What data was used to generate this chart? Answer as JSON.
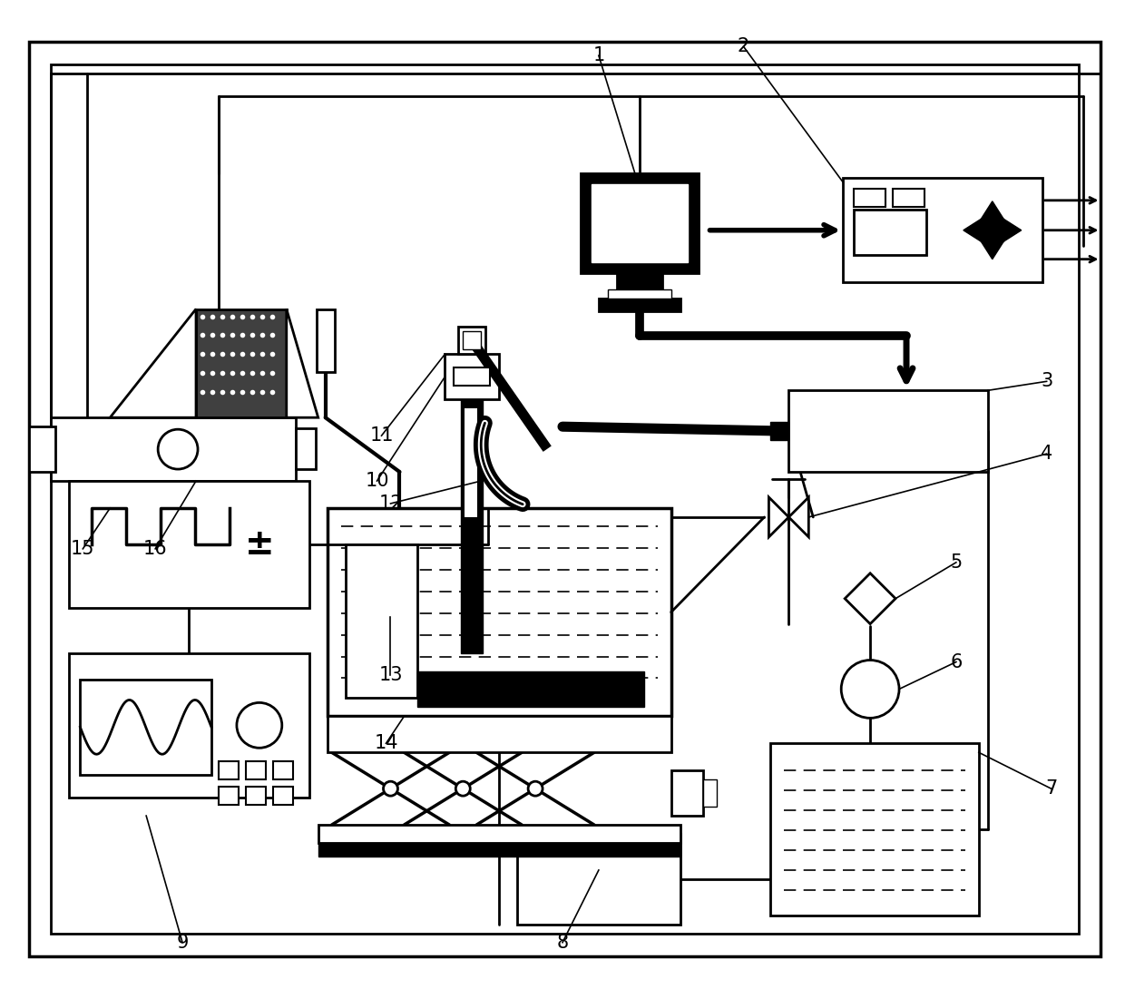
{
  "bg_color": "#ffffff",
  "lw": 2.0,
  "fig_width": 12.4,
  "fig_height": 10.9
}
